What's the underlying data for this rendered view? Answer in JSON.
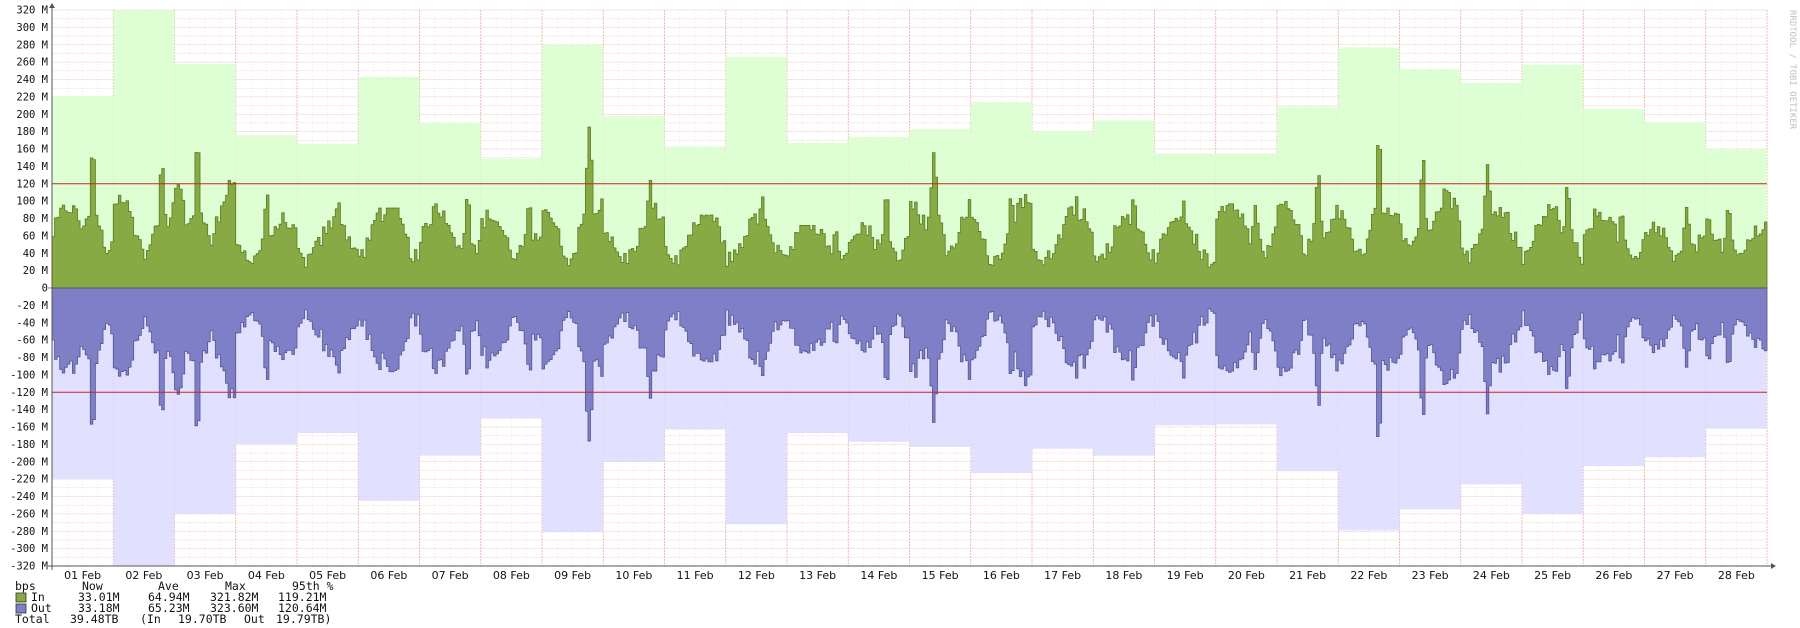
{
  "watermark": "RRDTOOL / TOBI OETIKER",
  "chart_data": {
    "type": "area",
    "ylabel": "",
    "ylim": [
      -320,
      320
    ],
    "y_unit": "M",
    "y_ticks": [
      320,
      300,
      280,
      260,
      240,
      220,
      200,
      180,
      160,
      140,
      120,
      100,
      80,
      60,
      40,
      20,
      0,
      -20,
      -40,
      -60,
      -80,
      -100,
      -120,
      -140,
      -160,
      -180,
      -200,
      -220,
      -240,
      -260,
      -280,
      -300,
      -320
    ],
    "x_labels": [
      "01 Feb",
      "02 Feb",
      "03 Feb",
      "04 Feb",
      "05 Feb",
      "06 Feb",
      "07 Feb",
      "08 Feb",
      "09 Feb",
      "10 Feb",
      "11 Feb",
      "12 Feb",
      "13 Feb",
      "14 Feb",
      "15 Feb",
      "16 Feb",
      "17 Feb",
      "18 Feb",
      "19 Feb",
      "20 Feb",
      "21 Feb",
      "22 Feb",
      "23 Feb",
      "24 Feb",
      "25 Feb",
      "26 Feb",
      "27 Feb",
      "28 Feb"
    ],
    "x_days": 28,
    "hlines": [
      120,
      -120
    ],
    "daily_max_in": [
      221,
      320,
      258,
      176,
      166,
      243,
      190,
      149,
      280,
      198,
      163,
      266,
      167,
      174,
      183,
      214,
      181,
      193,
      155,
      155,
      209,
      277,
      252,
      236,
      257,
      206,
      191,
      160
    ],
    "daily_max_out": [
      220,
      323,
      260,
      180,
      167,
      245,
      193,
      150,
      281,
      200,
      163,
      272,
      167,
      177,
      183,
      213,
      185,
      193,
      158,
      157,
      211,
      279,
      255,
      226,
      260,
      205,
      195,
      162
    ],
    "daily_peaks": [
      170,
      153,
      178,
      113,
      108,
      92,
      113,
      105,
      190,
      128,
      84,
      112,
      72,
      116,
      162,
      113,
      108,
      112,
      104,
      97,
      140,
      185,
      155,
      145,
      125,
      94,
      95,
      100
    ],
    "daily_base": [
      60,
      70,
      88,
      45,
      45,
      70,
      58,
      50,
      62,
      55,
      55,
      45,
      45,
      40,
      62,
      65,
      58,
      50,
      50,
      65,
      68,
      60,
      72,
      58,
      60,
      55,
      40,
      40
    ],
    "series": [
      {
        "name": "In",
        "color": "#88aa44",
        "fill_max": "#d8ffcc",
        "now": "33.01M",
        "ave": "64.94M",
        "max": "321.82M",
        "p95": "119.21M"
      },
      {
        "name": "Out",
        "color": "#7f7fc7",
        "fill_max": "#dcdcff",
        "now": "33.18M",
        "ave": "65.23M",
        "max": "323.60M",
        "p95": "120.64M"
      }
    ],
    "legend": {
      "unit": "bps",
      "col_now": "Now",
      "col_ave": "Ave",
      "col_max": "Max",
      "col_p95": "95th %",
      "total_label": "Total",
      "total_value": "39.48TB",
      "total_in_label": "(In",
      "total_in": "19.70TB",
      "total_out_label": "Out",
      "total_out": "19.79TB)"
    }
  }
}
